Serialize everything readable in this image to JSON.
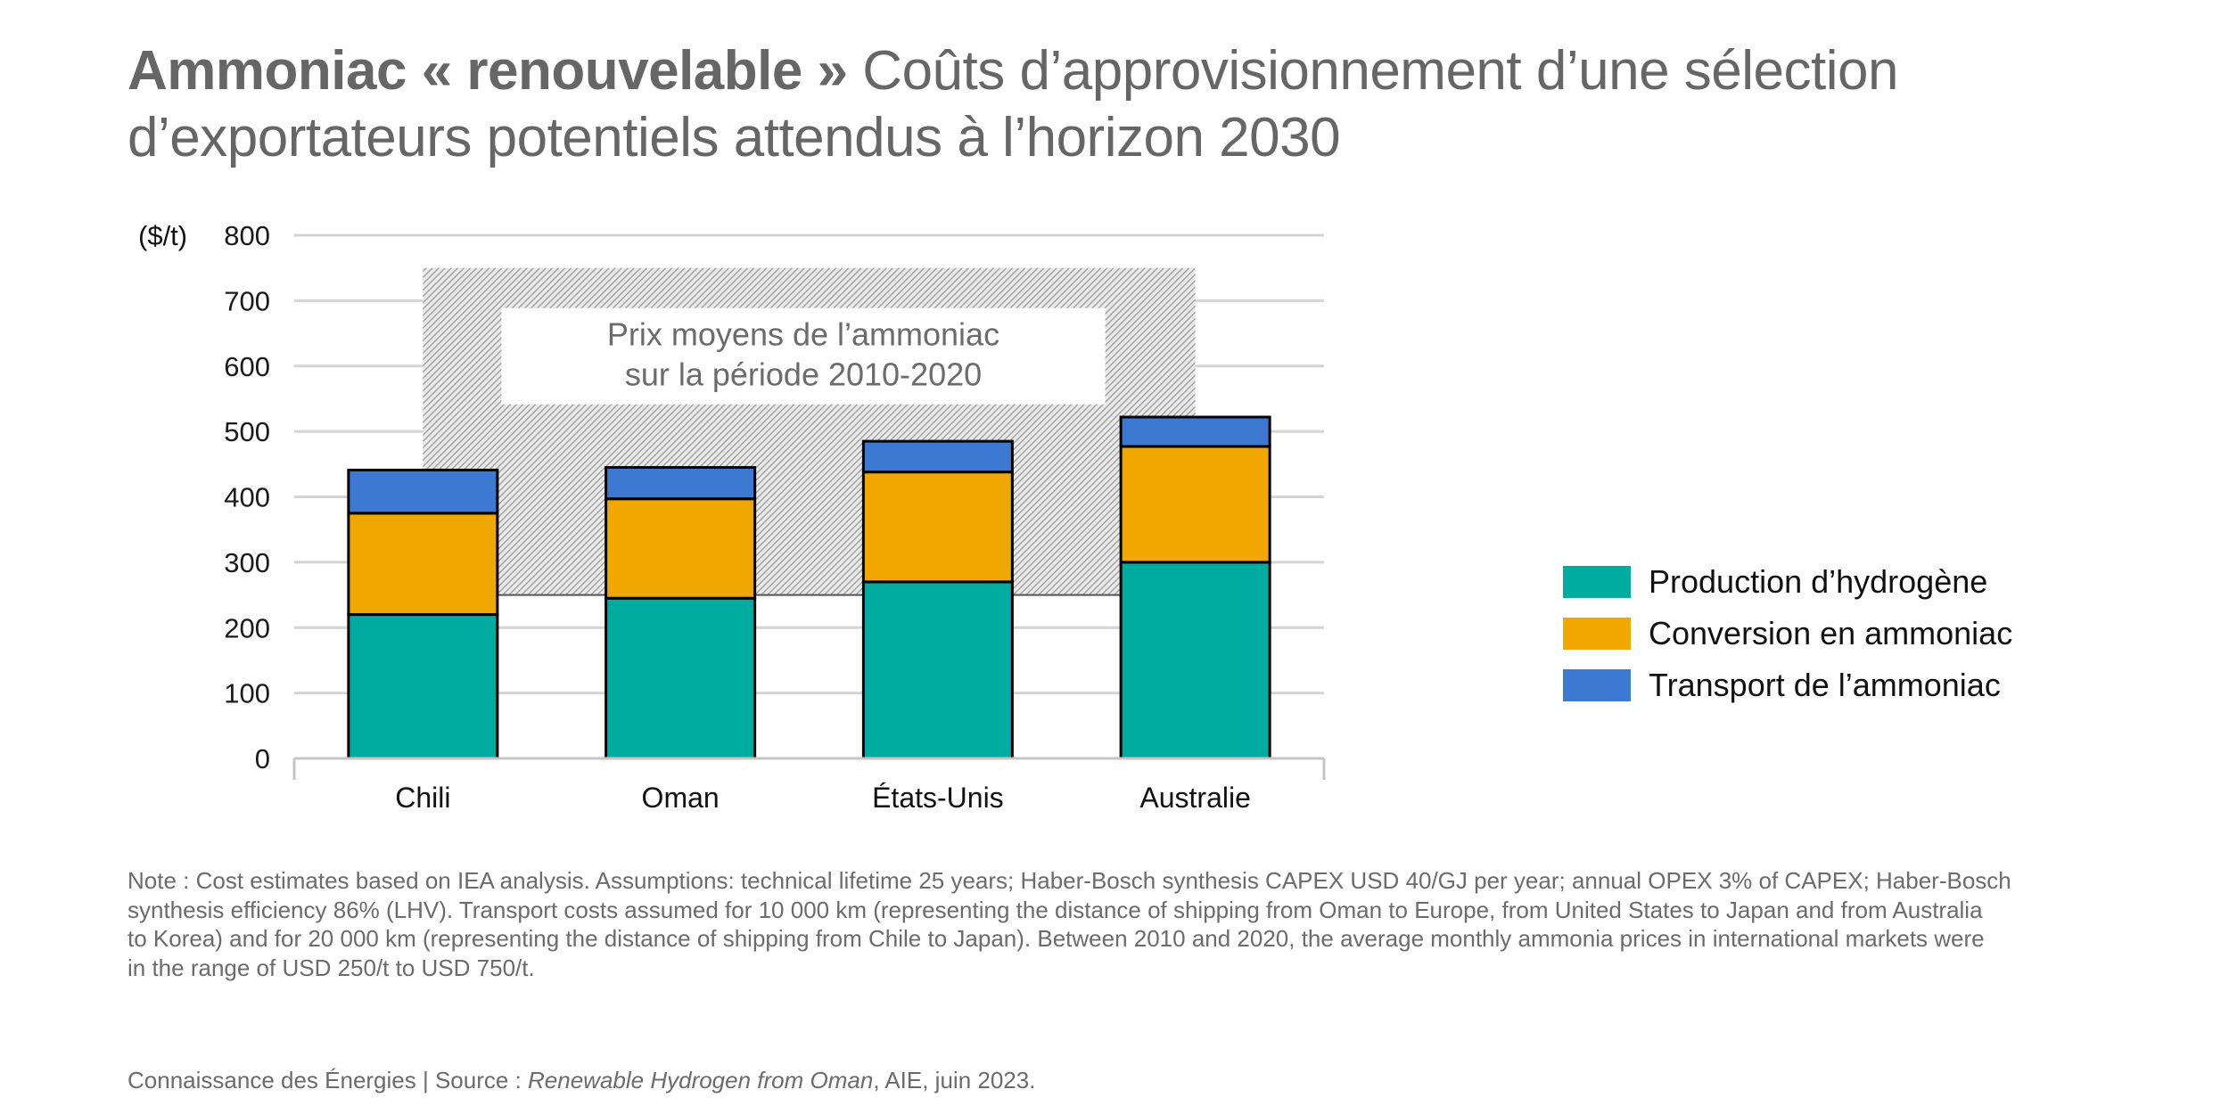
{
  "title": {
    "bold": "Ammoniac « renouvelable »",
    "light_line1": " Coûts d’approvisionnement d’une sélection",
    "light_line2": "d’exportateurs potentiels attendus à l’horizon 2030"
  },
  "chart_data": {
    "type": "bar",
    "stacked": true,
    "title": "Ammoniac « renouvelable » Coûts d’approvisionnement d’une sélection d’exportateurs potentiels attendus à l’horizon 2030",
    "xlabel": "",
    "ylabel": "($/t)",
    "ylim": [
      0,
      800
    ],
    "yticks": [
      0,
      100,
      200,
      300,
      400,
      500,
      600,
      700,
      800
    ],
    "grid": true,
    "legend_position": "right",
    "categories": [
      "Chili",
      "Oman",
      "États-Unis",
      "Australie"
    ],
    "series": [
      {
        "name": "Production d’hydrogène",
        "color": "#00AC9F",
        "values": [
          220,
          245,
          270,
          300
        ]
      },
      {
        "name": "Conversion en ammoniac",
        "color": "#F0A800",
        "values": [
          155,
          152,
          168,
          177
        ]
      },
      {
        "name": "Transport de l’ammoniac",
        "color": "#3D78D3",
        "values": [
          66,
          48,
          47,
          45
        ]
      }
    ],
    "totals": [
      441,
      445,
      485,
      522
    ],
    "annotation_band": {
      "label_line1": "Prix moyens de l’ammoniac",
      "label_line2": "sur la période 2010-2020",
      "y_range": [
        250,
        750
      ],
      "category_span": [
        "Chili",
        "Australie"
      ],
      "style": "hatched"
    }
  },
  "legend": [
    {
      "label": "Production d’hydrogène",
      "color": "#00AC9F"
    },
    {
      "label": "Conversion en ammoniac",
      "color": "#F0A800"
    },
    {
      "label": "Transport de l’ammoniac",
      "color": "#3D78D3"
    }
  ],
  "note": {
    "lines": [
      "Note : Cost estimates based on IEA analysis. Assumptions: technical lifetime 25 years; Haber-Bosch synthesis CAPEX USD 40/GJ per year; annual OPEX 3% of CAPEX; Haber-Bosch",
      "synthesis efficiency 86% (LHV). Transport costs assumed for 10 000 km (representing the distance of shipping from Oman to Europe, from United States to Japan and from Australia",
      "to Korea) and for 20 000 km (representing the distance of shipping from Chile to Japan). Between 2010 and 2020, the average monthly ammonia prices in international markets were",
      "in the range of USD 250/t to USD 750/t."
    ]
  },
  "source": {
    "prefix": "Connaissance des Énergies | Source : ",
    "italic": "Renewable Hydrogen from Oman",
    "suffix": ", AIE, juin 2023."
  }
}
